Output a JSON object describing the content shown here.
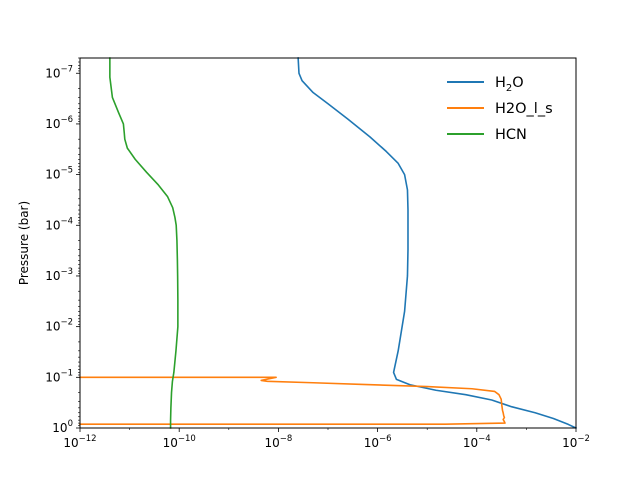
{
  "chart_data": {
    "type": "line",
    "title": "",
    "xlabel": "",
    "ylabel": "Pressure (bar)",
    "xscale": "log",
    "yscale": "log",
    "xlim": [
      1e-12,
      0.01
    ],
    "ylim": [
      1,
      5e-08
    ],
    "y_inverted": true,
    "grid": false,
    "legend_location": "upper right",
    "x_tick_labels": [
      {
        "base": "10",
        "exp": "−12",
        "value": 1e-12
      },
      {
        "base": "10",
        "exp": "−10",
        "value": 1e-10
      },
      {
        "base": "10",
        "exp": "−8",
        "value": 1e-08
      },
      {
        "base": "10",
        "exp": "−6",
        "value": 1e-06
      },
      {
        "base": "10",
        "exp": "−4",
        "value": 0.0001
      },
      {
        "base": "10",
        "exp": "−2",
        "value": 0.01
      }
    ],
    "y_tick_labels": [
      {
        "base": "10",
        "exp": "0",
        "value": 1
      },
      {
        "base": "10",
        "exp": "−1",
        "value": 0.1
      },
      {
        "base": "10",
        "exp": "−2",
        "value": 0.01
      },
      {
        "base": "10",
        "exp": "−3",
        "value": 0.001
      },
      {
        "base": "10",
        "exp": "−4",
        "value": 0.0001
      },
      {
        "base": "10",
        "exp": "−5",
        "value": 1e-05
      },
      {
        "base": "10",
        "exp": "−6",
        "value": 1e-06
      },
      {
        "base": "10",
        "exp": "−7",
        "value": 1e-07
      }
    ],
    "series": [
      {
        "name": "H2O",
        "legend_base": "H",
        "legend_sub": "2",
        "legend_tail": "O",
        "color": "#1f77b4",
        "x": [
          2.5e-08,
          2.6e-08,
          3e-08,
          5e-08,
          1e-07,
          2.5e-07,
          7e-07,
          1.5e-06,
          2.6e-06,
          3.5e-06,
          4e-06,
          4.1e-06,
          4.1e-06,
          4e-06,
          3.5e-06,
          2.6e-06,
          2.1e-06,
          2.4e-06,
          4.5e-06,
          1.5e-05,
          6e-05,
          0.0002,
          0.0005,
          0.0015,
          0.0035,
          0.007,
          0.01
        ],
        "y": [
          5e-08,
          1e-07,
          1.4e-07,
          2.4e-07,
          4e-07,
          8e-07,
          1.8e-06,
          3.5e-06,
          6e-06,
          1e-05,
          2e-05,
          5e-05,
          0.0003,
          0.001,
          0.005,
          0.03,
          0.08,
          0.11,
          0.14,
          0.18,
          0.22,
          0.28,
          0.38,
          0.5,
          0.65,
          0.85,
          1
        ]
      },
      {
        "name": "H2O_l_s",
        "color": "#ff7f0e",
        "x": [
          1e-12,
          9e-09,
          4.5e-09,
          6e-09,
          5e-08,
          5e-07,
          1e-05,
          8e-05,
          0.00023,
          0.00028,
          0.00031,
          0.00032,
          0.00033,
          0.00034,
          0.00035,
          0.00036,
          0.00034,
          0.00036,
          0.00037,
          2.3e-05,
          1e-12
        ],
        "y": [
          0.1,
          0.1,
          0.115,
          0.12,
          0.128,
          0.138,
          0.152,
          0.168,
          0.19,
          0.22,
          0.27,
          0.36,
          0.45,
          0.5,
          0.58,
          0.62,
          0.68,
          0.75,
          0.8,
          0.84,
          0.84
        ]
      },
      {
        "name": "HCN",
        "color": "#2ca02c",
        "x": [
          4e-12,
          4e-12,
          4.5e-12,
          6e-12,
          7.5e-12,
          7.8e-12,
          8e-12,
          9e-12,
          1.3e-11,
          2.2e-11,
          3.8e-11,
          5.8e-11,
          7.4e-11,
          8.2e-11,
          8.7e-11,
          9e-11,
          9.2e-11,
          9.3e-11,
          9.4e-11,
          9.4e-11,
          8.6e-11,
          7.8e-11,
          7.3e-11,
          7e-11,
          6.8e-11,
          6.7e-11,
          6.7e-11
        ],
        "y": [
          5e-08,
          1.2e-07,
          3e-07,
          6e-07,
          1e-06,
          1.5e-06,
          2e-06,
          3e-06,
          5e-06,
          9e-06,
          1.6e-05,
          2.7e-05,
          4.5e-05,
          7e-05,
          0.0001,
          0.0002,
          0.0005,
          0.001,
          0.003,
          0.01,
          0.03,
          0.08,
          0.12,
          0.2,
          0.4,
          0.7,
          1
        ]
      }
    ]
  }
}
